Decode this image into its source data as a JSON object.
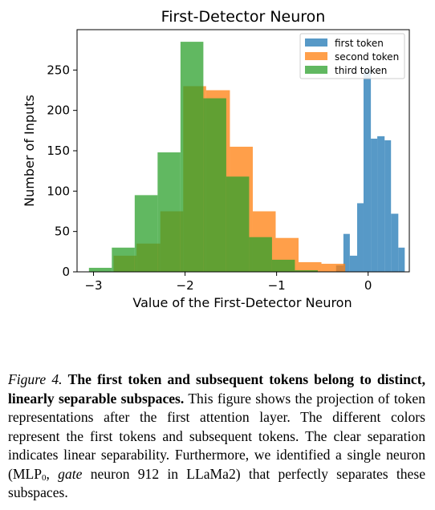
{
  "chart_data": {
    "type": "bar",
    "subtype": "histogram",
    "title": "First-Detector Neuron",
    "xlabel": "Value of the First-Detector Neuron",
    "ylabel": "Number of Inputs",
    "xlim": [
      -3.18,
      0.45
    ],
    "ylim": [
      0,
      300
    ],
    "xticks": [
      -3,
      -2,
      -1,
      0
    ],
    "xtick_labels": [
      "−3",
      "−2",
      "−1",
      "0"
    ],
    "yticks": [
      0,
      50,
      100,
      150,
      200,
      250
    ],
    "ytick_labels": [
      "0",
      "50",
      "100",
      "150",
      "200",
      "250"
    ],
    "grid": false,
    "legend": {
      "placement": "top-right"
    },
    "series": [
      {
        "name": "first token",
        "color": "#1f77b4",
        "bins": [
          {
            "x0": -0.35,
            "x1": -0.27,
            "y": 8
          },
          {
            "x0": -0.27,
            "x1": -0.2,
            "y": 47
          },
          {
            "x0": -0.2,
            "x1": -0.12,
            "y": 20
          },
          {
            "x0": -0.12,
            "x1": -0.05,
            "y": 85
          },
          {
            "x0": -0.05,
            "x1": 0.03,
            "y": 250
          },
          {
            "x0": 0.03,
            "x1": 0.1,
            "y": 165
          },
          {
            "x0": 0.1,
            "x1": 0.18,
            "y": 168
          },
          {
            "x0": 0.18,
            "x1": 0.25,
            "y": 163
          },
          {
            "x0": 0.25,
            "x1": 0.33,
            "y": 72
          },
          {
            "x0": 0.33,
            "x1": 0.4,
            "y": 30
          }
        ]
      },
      {
        "name": "second token",
        "color": "#ff7f0e",
        "bins": [
          {
            "x0": -2.78,
            "x1": -2.53,
            "y": 20
          },
          {
            "x0": -2.53,
            "x1": -2.27,
            "y": 35
          },
          {
            "x0": -2.27,
            "x1": -2.02,
            "y": 75
          },
          {
            "x0": -2.02,
            "x1": -1.77,
            "y": 230
          },
          {
            "x0": -1.77,
            "x1": -1.51,
            "y": 225
          },
          {
            "x0": -1.51,
            "x1": -1.26,
            "y": 155
          },
          {
            "x0": -1.26,
            "x1": -1.01,
            "y": 75
          },
          {
            "x0": -1.01,
            "x1": -0.76,
            "y": 42
          },
          {
            "x0": -0.76,
            "x1": -0.51,
            "y": 12
          },
          {
            "x0": -0.51,
            "x1": -0.25,
            "y": 10
          }
        ]
      },
      {
        "name": "third token",
        "color": "#2ca02c",
        "bins": [
          {
            "x0": -3.05,
            "x1": -2.8,
            "y": 5
          },
          {
            "x0": -2.8,
            "x1": -2.55,
            "y": 30
          },
          {
            "x0": -2.55,
            "x1": -2.3,
            "y": 95
          },
          {
            "x0": -2.3,
            "x1": -2.05,
            "y": 148
          },
          {
            "x0": -2.05,
            "x1": -1.8,
            "y": 285
          },
          {
            "x0": -1.8,
            "x1": -1.55,
            "y": 215
          },
          {
            "x0": -1.55,
            "x1": -1.3,
            "y": 118
          },
          {
            "x0": -1.3,
            "x1": -1.05,
            "y": 43
          },
          {
            "x0": -1.05,
            "x1": -0.8,
            "y": 15
          },
          {
            "x0": -0.8,
            "x1": -0.55,
            "y": 2
          }
        ]
      }
    ]
  },
  "caption": {
    "label": "Figure 4.",
    "bold": "The first token and subsequent tokens belong to distinct, linearly separable subspaces.",
    "text1": "This figure shows the projection of token representations after the first attention layer. The different colors represent the first tokens and subsequent tokens. The clear separation indicates linear separability. Furthermore, we identified a single neuron (MLP",
    "sub": "0",
    "text2": ",",
    "italic": "gate",
    "text3": "neuron 912 in LLaMa2) that perfectly separates these subspaces."
  }
}
